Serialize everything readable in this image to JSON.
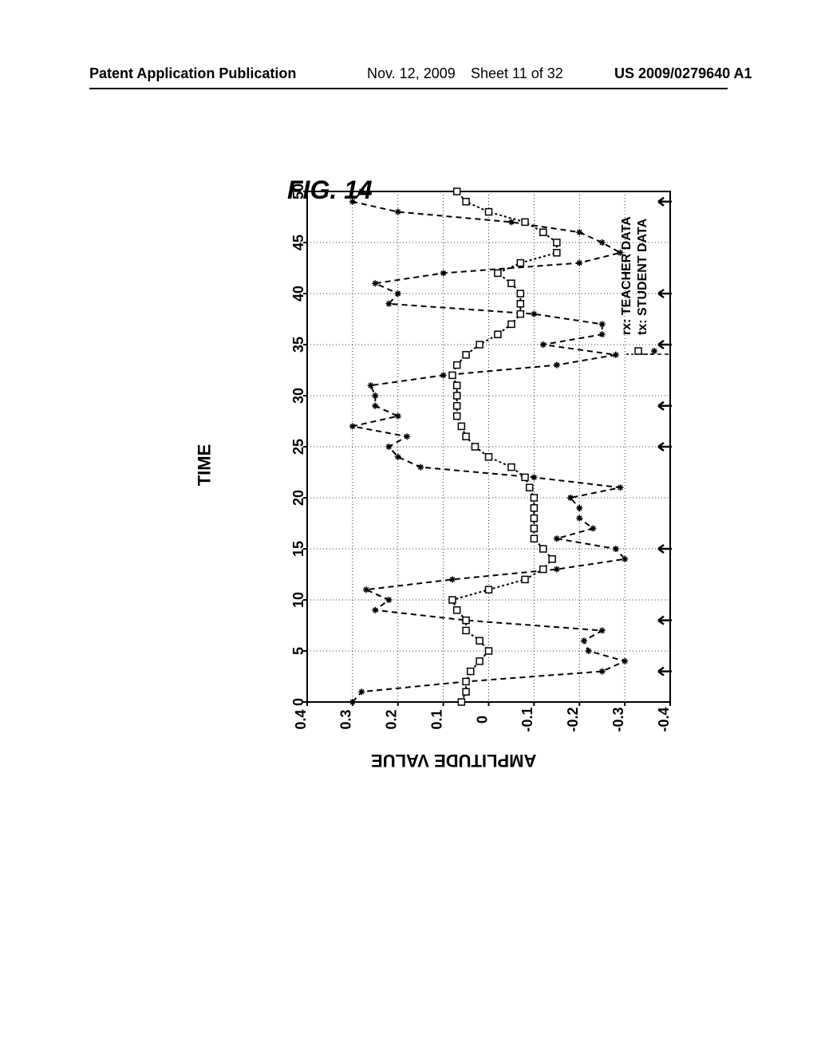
{
  "header": {
    "pub_type": "Patent Application Publication",
    "date": "Nov. 12, 2009",
    "sheet": "Sheet 11 of 32",
    "pub_number": "US 2009/0279640 A1"
  },
  "figure": {
    "title": "FIG. 14",
    "xlabel": "TIME",
    "ylabel": "AMPLITUDE VALUE",
    "legend": {
      "student": "tx: STUDENT DATA",
      "teacher": "rx: TEACHER DATA",
      "student_marker": "✻",
      "teacher_marker": "⊡"
    },
    "chart": {
      "type": "line",
      "xlim": [
        0,
        50
      ],
      "ylim": [
        -0.4,
        0.4
      ],
      "xticks": [
        0,
        5,
        10,
        15,
        20,
        25,
        30,
        35,
        40,
        45,
        50
      ],
      "yticks": [
        -0.4,
        -0.3,
        -0.2,
        -0.1,
        0,
        0.1,
        0.2,
        0.3,
        0.4
      ],
      "background_color": "#ffffff",
      "grid_color": "#000000",
      "grid_style": "dotted",
      "axis_color": "#000000",
      "line_width": 2,
      "marker_size": 8,
      "font_size_ticks": 18,
      "arrows_x": [
        3,
        8,
        15,
        25,
        29,
        35,
        40,
        49
      ],
      "series": [
        {
          "name": "student",
          "marker": "asterisk",
          "color": "#000000",
          "linestyle": "dashed",
          "x": [
            0,
            1,
            2,
            3,
            4,
            5,
            6,
            7,
            8,
            9,
            10,
            11,
            12,
            13,
            14,
            15,
            16,
            17,
            18,
            19,
            20,
            21,
            22,
            23,
            24,
            25,
            26,
            27,
            28,
            29,
            30,
            31,
            32,
            33,
            34,
            35,
            36,
            37,
            38,
            39,
            40,
            41,
            42,
            43,
            44,
            45,
            46,
            47,
            48,
            49,
            50
          ],
          "y": [
            0.3,
            0.28,
            0.05,
            -0.25,
            -0.3,
            -0.22,
            -0.21,
            -0.25,
            0.05,
            0.25,
            0.22,
            0.27,
            0.08,
            -0.15,
            -0.3,
            -0.28,
            -0.15,
            -0.23,
            -0.2,
            -0.2,
            -0.18,
            -0.29,
            -0.1,
            0.15,
            0.2,
            0.22,
            0.18,
            0.3,
            0.2,
            0.25,
            0.25,
            0.26,
            0.1,
            -0.15,
            -0.28,
            -0.12,
            -0.25,
            -0.25,
            -0.1,
            0.22,
            0.2,
            0.25,
            0.1,
            -0.2,
            -0.29,
            -0.25,
            -0.2,
            -0.05,
            0.2,
            0.3,
            0.28
          ]
        },
        {
          "name": "teacher",
          "marker": "square",
          "color": "#000000",
          "linestyle": "dashed_dense",
          "x": [
            0,
            1,
            2,
            3,
            4,
            5,
            6,
            7,
            8,
            9,
            10,
            11,
            12,
            13,
            14,
            15,
            16,
            17,
            18,
            19,
            20,
            21,
            22,
            23,
            24,
            25,
            26,
            27,
            28,
            29,
            30,
            31,
            32,
            33,
            34,
            35,
            36,
            37,
            38,
            39,
            40,
            41,
            42,
            43,
            44,
            45,
            46,
            47,
            48,
            49,
            50
          ],
          "y": [
            0.06,
            0.05,
            0.05,
            0.04,
            0.02,
            0.0,
            0.02,
            0.05,
            0.05,
            0.07,
            0.08,
            0.0,
            -0.08,
            -0.12,
            -0.14,
            -0.12,
            -0.1,
            -0.1,
            -0.1,
            -0.1,
            -0.1,
            -0.09,
            -0.08,
            -0.05,
            0.0,
            0.03,
            0.05,
            0.06,
            0.07,
            0.07,
            0.07,
            0.07,
            0.08,
            0.07,
            0.05,
            0.02,
            -0.02,
            -0.05,
            -0.07,
            -0.07,
            -0.07,
            -0.05,
            -0.02,
            -0.07,
            -0.15,
            -0.15,
            -0.12,
            -0.08,
            0.0,
            0.05,
            0.07
          ]
        }
      ]
    }
  }
}
